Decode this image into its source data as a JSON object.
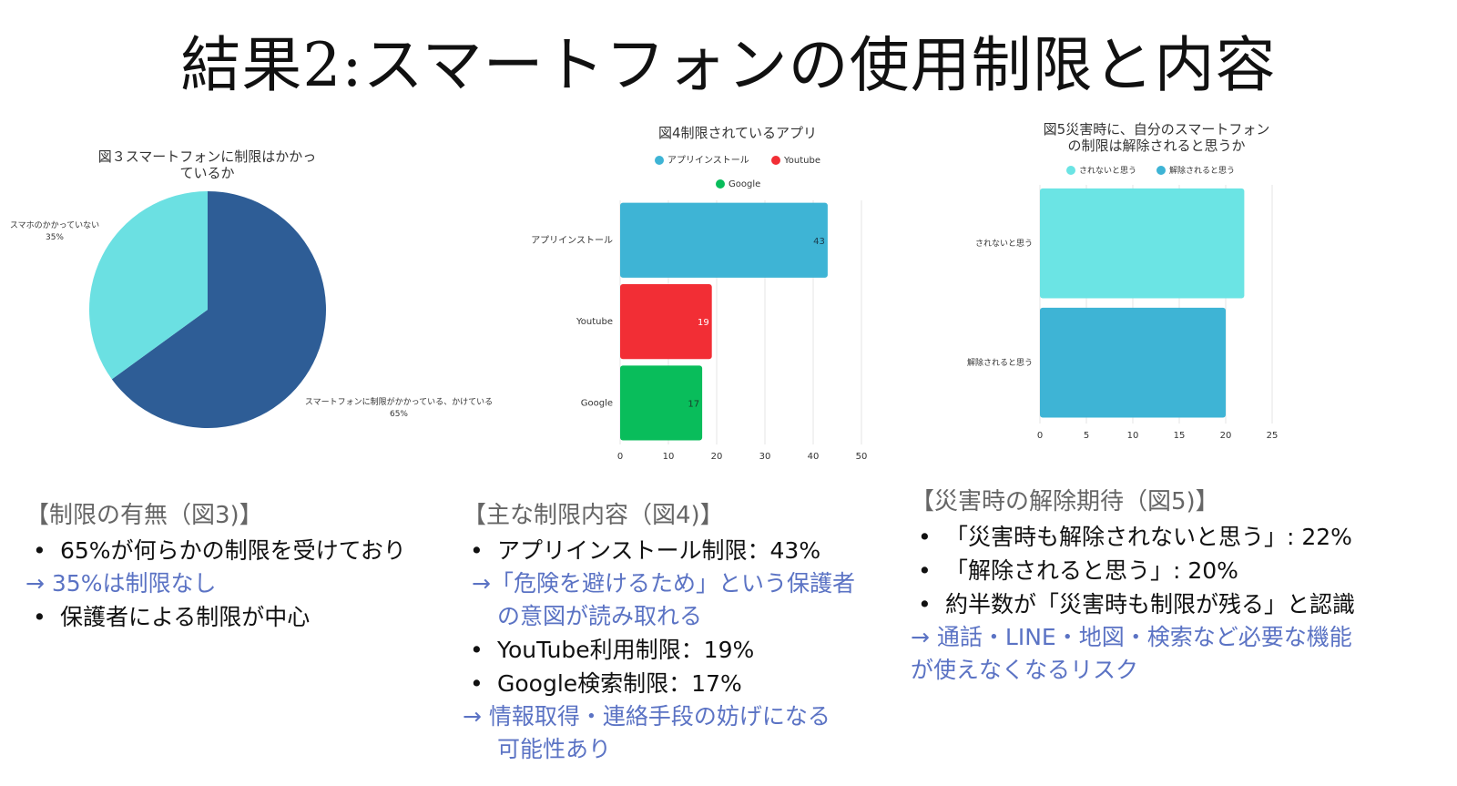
{
  "title": "結果2:スマートフォンの使用制限と内容",
  "chart_data": [
    {
      "type": "pie",
      "title": "図３スマートフォンに制限はかかっているか",
      "title_lines": [
        "図３スマートフォンに制限はかかっ",
        "ているか"
      ],
      "slices": [
        {
          "label": "スマートフォンに制限がかかっている、かけている",
          "pct": "65%",
          "value": 65,
          "color": "#2e5d96"
        },
        {
          "label": "スマホのかかっていない",
          "pct": "35%",
          "value": 35,
          "color": "#6be0e2"
        }
      ]
    },
    {
      "type": "bar",
      "orientation": "horizontal",
      "title": "図4制限されているアプリ",
      "categories": [
        "アプリインストール",
        "Youtube",
        "Google"
      ],
      "values": [
        43,
        19,
        17
      ],
      "colors": [
        "#3eb4d5",
        "#f22e35",
        "#09bd5b"
      ],
      "legend": [
        "アプリインストール",
        "Youtube",
        "Google"
      ],
      "xlim": [
        0,
        50
      ],
      "ticks": [
        0,
        10,
        20,
        30,
        40,
        50
      ]
    },
    {
      "type": "bar",
      "orientation": "horizontal",
      "title": "図5災害時に、自分のスマートフォンの制限は解除されると思うか",
      "title_lines": [
        "図5災害時に、自分のスマートフォン",
        "の制限は解除されると思うか"
      ],
      "categories": [
        "されないと思う",
        "解除されると思う"
      ],
      "values": [
        22,
        20
      ],
      "colors": [
        "#6be4e4",
        "#3eb4d5"
      ],
      "legend": [
        "されないと思う",
        "解除されると思う"
      ],
      "xlim": [
        0,
        25
      ],
      "ticks": [
        0,
        5,
        10,
        15,
        20,
        25
      ]
    }
  ],
  "sections": {
    "s1": {
      "head": "【制限の有無（図3)】",
      "b1": "65%が何らかの制限を受けており",
      "n1": "→ 35%は制限なし",
      "b2": "保護者による制限が中心"
    },
    "s2": {
      "head": "【主な制限内容（図4)】",
      "b1": "アプリインストール制限：43%",
      "n1a": "→「危険を避けるため」という保護者",
      "n1b": "の意図が読み取れる",
      "b2": "YouTube利用制限：19%",
      "b3": "Google検索制限：17%",
      "n2a": "→ 情報取得・連絡手段の妨げになる",
      "n2b": "可能性あり"
    },
    "s3": {
      "head": "【災害時の解除期待（図5)】",
      "b1": "「災害時も解除されないと思う」: 22%",
      "b2": "「解除されると思う」: 20%",
      "b3": "約半数が「災害時も制限が残る」と認識",
      "n1a": "→ 通話・LINE・地図・検索など必要な機能",
      "n1b": "が使えなくなるリスク"
    }
  }
}
